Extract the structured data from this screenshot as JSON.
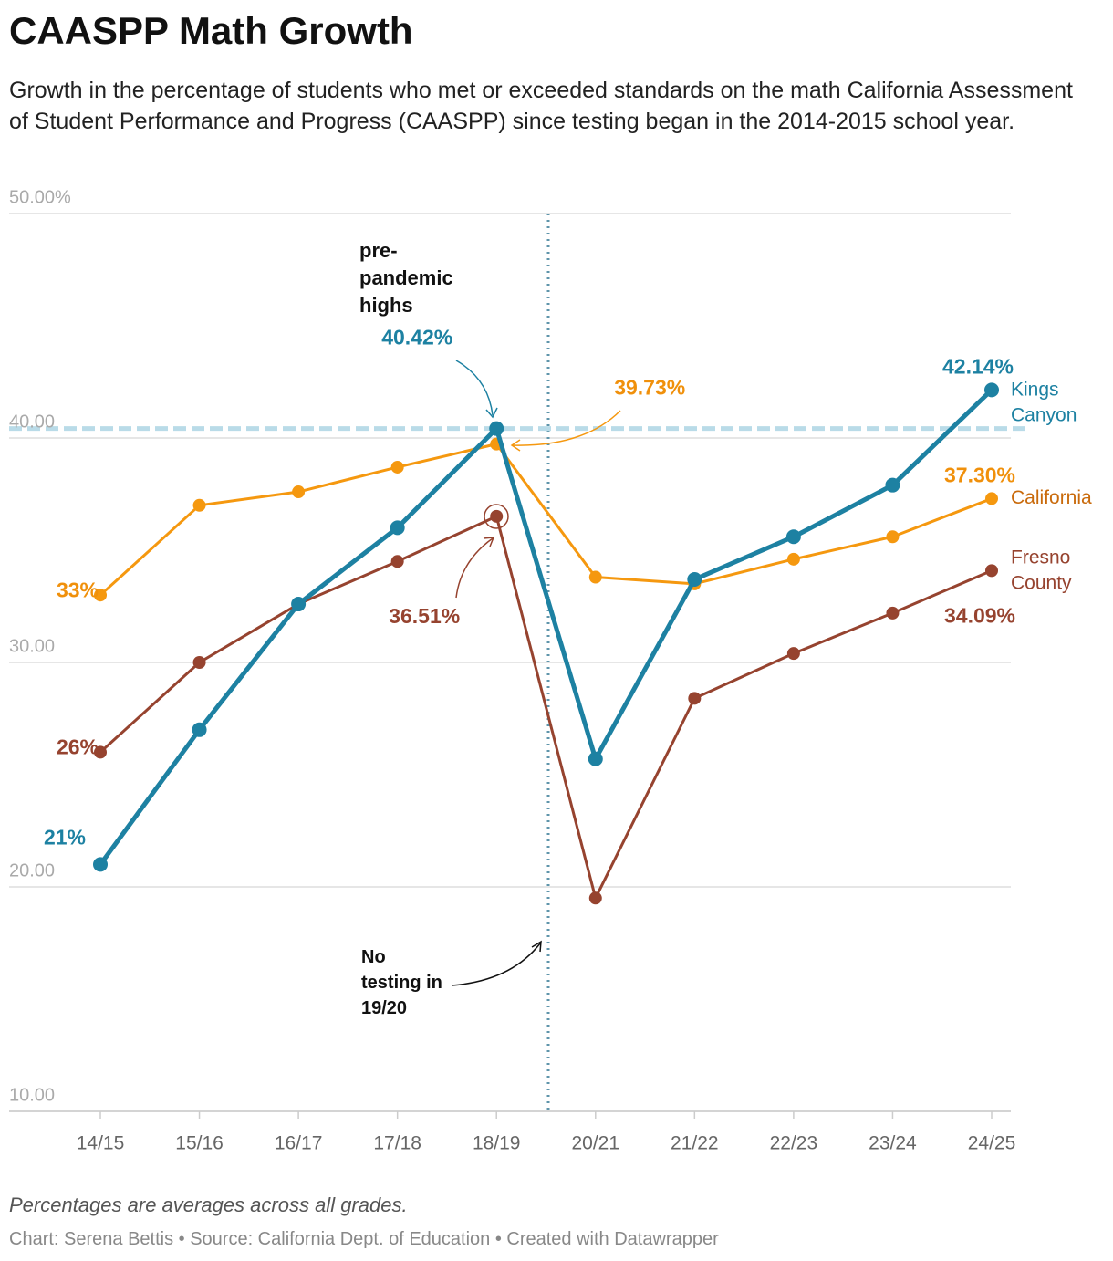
{
  "chart_data": {
    "type": "line",
    "title": "CAASPP Math Growth",
    "subtitle": "Growth in the percentage of students who met or exceeded standards on the math California Assessment of Student Performance and Progress (CAASPP) since testing began in the 2014-2015 school year.",
    "categories": [
      "14/15",
      "15/16",
      "16/17",
      "17/18",
      "18/19",
      "20/21",
      "21/22",
      "22/23",
      "23/24",
      "24/25"
    ],
    "series": [
      {
        "name": "Kings Canyon",
        "color": "#1d81a2",
        "values": [
          21,
          27.0,
          32.6,
          36.0,
          40.42,
          25.7,
          33.7,
          35.6,
          37.9,
          42.14
        ],
        "value_labels": [
          "21%",
          null,
          null,
          null,
          "40.42%",
          null,
          null,
          null,
          null,
          "42.14%"
        ]
      },
      {
        "name": "California",
        "color": "#f5980f",
        "values": [
          33,
          37.0,
          37.6,
          38.7,
          39.73,
          33.8,
          33.5,
          34.6,
          35.6,
          37.3
        ],
        "value_labels": [
          "33%",
          null,
          null,
          null,
          "39.73%",
          null,
          null,
          null,
          null,
          "37.30%"
        ]
      },
      {
        "name": "Fresno County",
        "color": "#96432f",
        "values": [
          26,
          30.0,
          32.6,
          34.5,
          36.51,
          19.5,
          28.4,
          30.4,
          32.2,
          34.09
        ],
        "value_labels": [
          "26%",
          null,
          null,
          null,
          "36.51%",
          null,
          null,
          null,
          null,
          "34.09%"
        ]
      }
    ],
    "ylim": [
      10,
      50
    ],
    "yticks": [
      {
        "value": 10,
        "label": "10.00"
      },
      {
        "value": 20,
        "label": "20.00"
      },
      {
        "value": 30,
        "label": "30.00"
      },
      {
        "value": 40,
        "label": "40.00"
      },
      {
        "value": 50,
        "label": "50.00%"
      }
    ],
    "grid": true,
    "annotations": [
      "pre-pandemic highs",
      "No testing in 19/20"
    ],
    "note": "Percentages are averages across all grades.",
    "credit": "Chart: Serena Bettis • Source: California Dept. of Education • Created with Datawrapper"
  }
}
